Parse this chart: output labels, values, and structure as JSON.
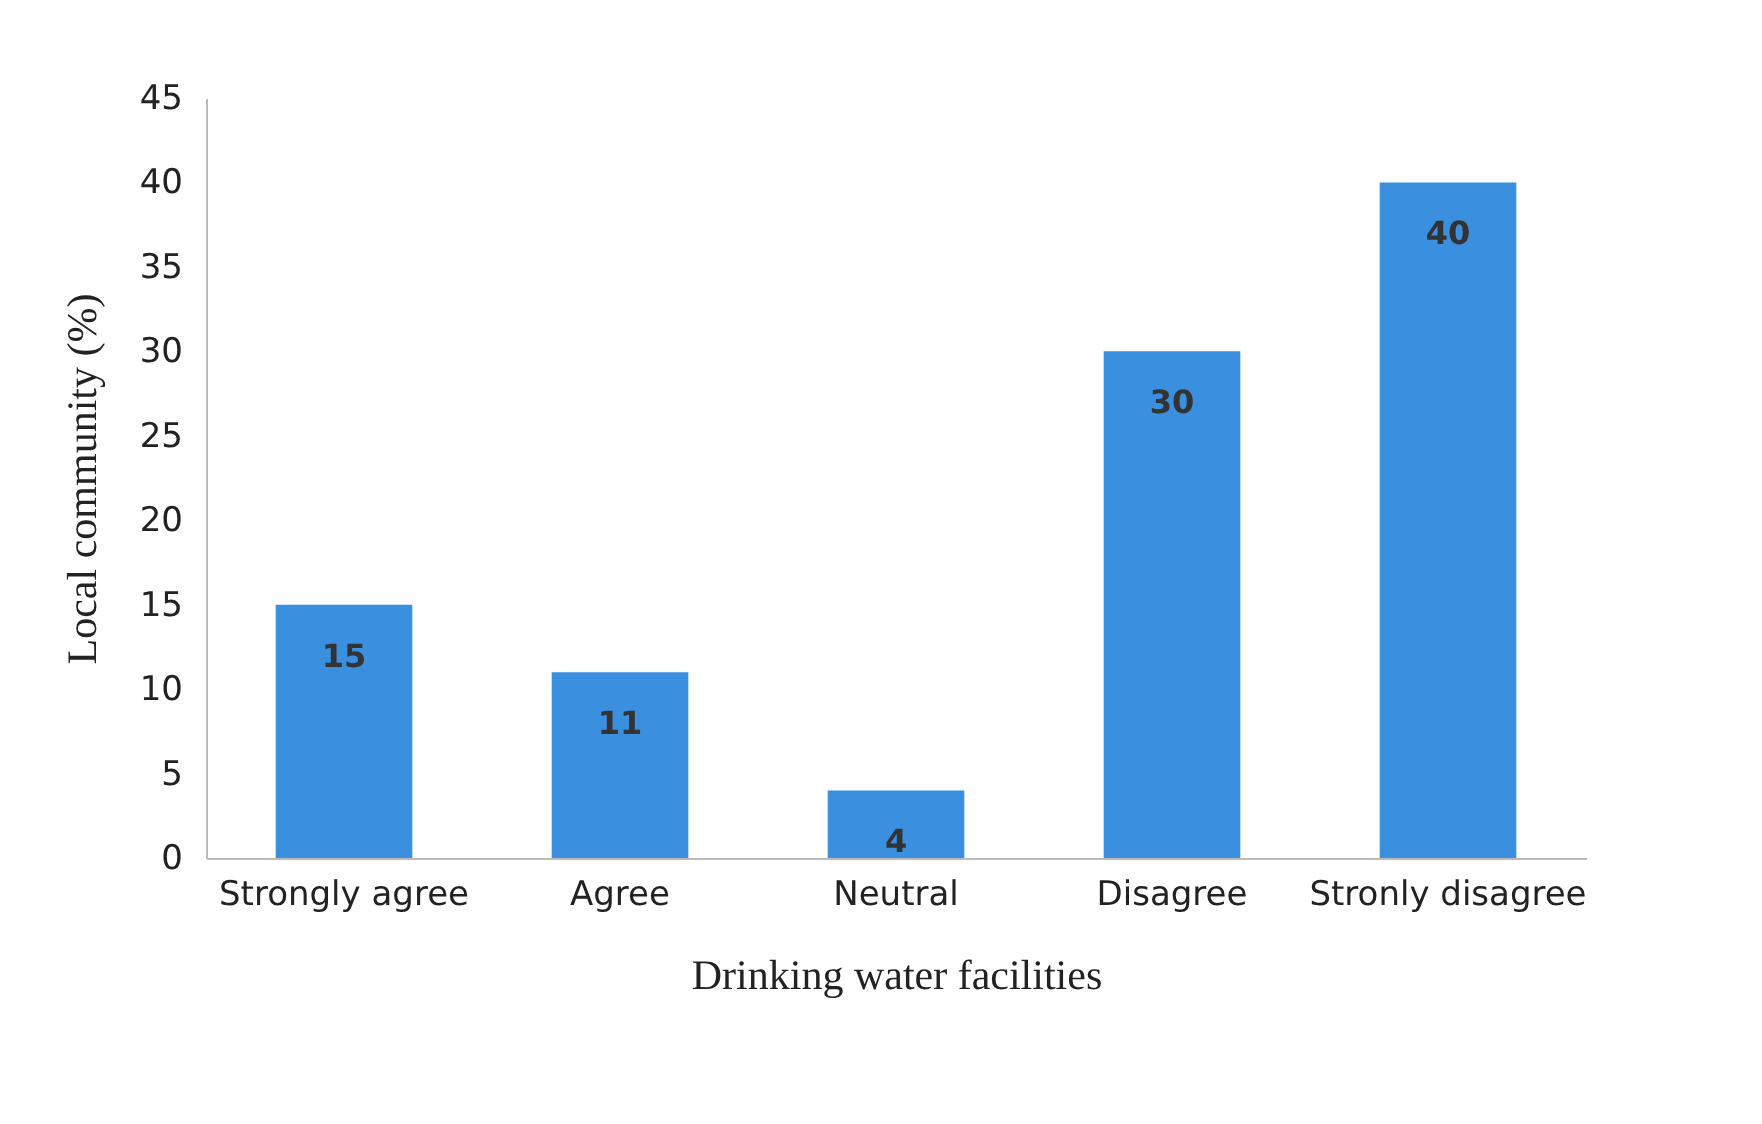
{
  "chart_data": {
    "type": "bar",
    "xlabel": "Drinking water facilities",
    "ylabel": "Local community (%)",
    "categories": [
      "Strongly agree",
      "Agree",
      "Neutral",
      "Disagree",
      "Stronly disagree"
    ],
    "values": [
      15,
      11,
      4,
      30,
      40
    ],
    "color": "#3a8fdf",
    "ylim": [
      0,
      45
    ],
    "yticks": [
      0,
      5,
      10,
      15,
      20,
      25,
      30,
      35,
      40,
      45
    ],
    "grid": false,
    "data_labels": true
  }
}
